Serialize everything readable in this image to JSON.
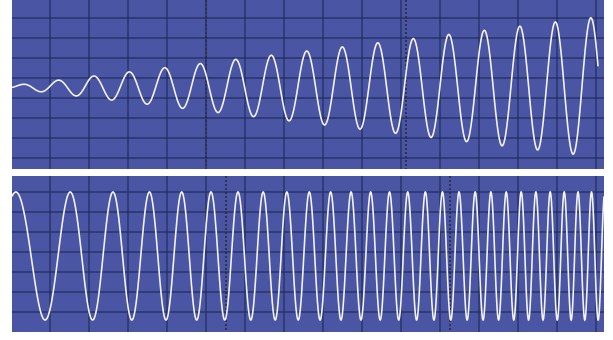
{
  "app": {
    "title": ""
  },
  "colors": {
    "background": "#4a56a4",
    "grid_major": "#202d5c",
    "grid_minor": "#3a4690",
    "grid_dashed": "#2b2b33",
    "trace": "#f4f4f6",
    "page": "#ffffff"
  },
  "chart_data": [
    {
      "type": "line",
      "title": "",
      "xlabel": "",
      "ylabel": "",
      "grid": true,
      "description_shape": "sine wave with linearly increasing amplitude (growing oscillation)",
      "x": [
        0,
        1,
        2,
        3,
        4,
        5,
        6,
        7,
        8,
        9,
        10,
        11,
        12,
        13,
        14,
        15,
        16
      ],
      "series": [
        {
          "name": "",
          "kind": "growing-amplitude-sine",
          "cycles": 16.5,
          "amplitude_start": 0.02,
          "amplitude_end": 1.0
        }
      ],
      "ylim": [
        -1,
        1
      ]
    },
    {
      "type": "line",
      "title": "",
      "xlabel": "",
      "ylabel": "",
      "grid": true,
      "description_shape": "constant-amplitude sine chirp with increasing frequency",
      "series": [
        {
          "name": "",
          "kind": "chirp",
          "cycles": 27,
          "amplitude": 1.0,
          "frequency_ratio_end_to_start": 5
        }
      ],
      "ylim": [
        -1,
        1
      ]
    }
  ]
}
